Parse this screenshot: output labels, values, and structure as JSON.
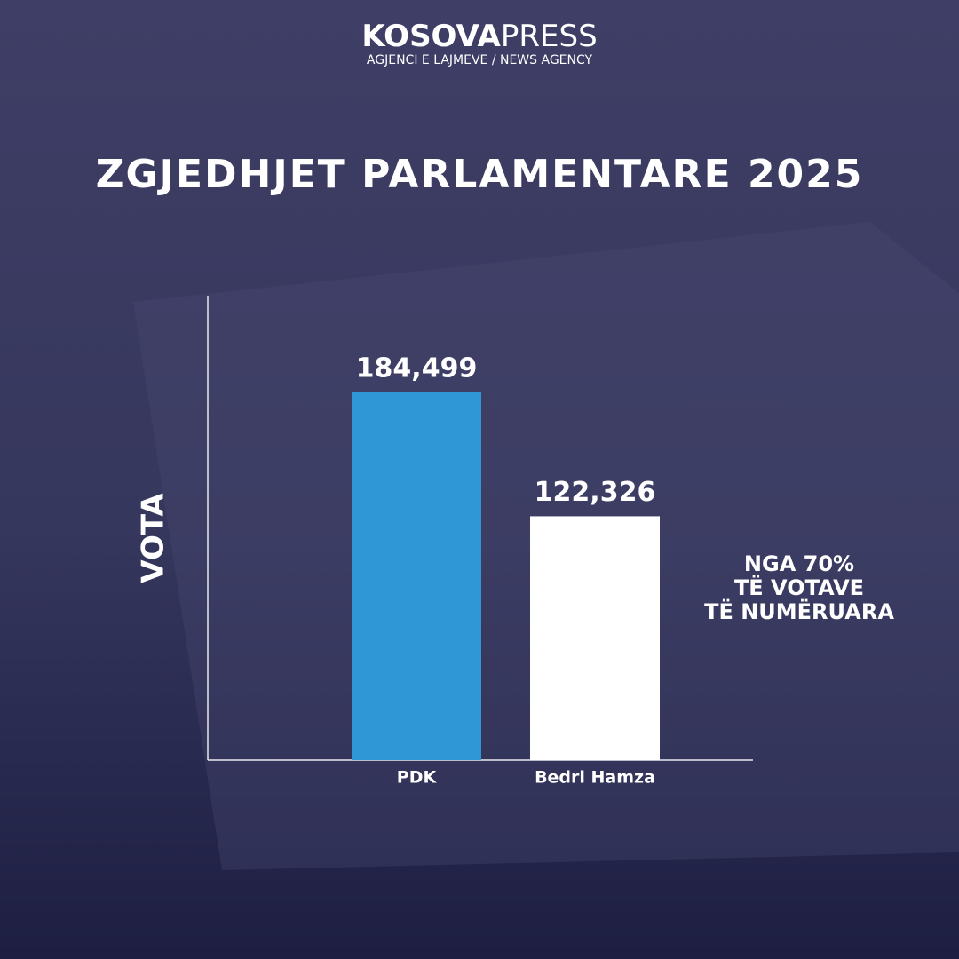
{
  "header": {
    "brand_bold": "KOSOVA",
    "brand_light": "PRESS",
    "tagline": "AGJENCI E LAJMEVE / NEWS AGENCY"
  },
  "chart_data": {
    "type": "bar",
    "title": "ZGJEDHJET PARLAMENTARE 2025",
    "y_label": "VOTA",
    "categories": [
      "PDK",
      "Bedri Hamza"
    ],
    "values": [
      184499,
      122326
    ],
    "value_labels": [
      "184,499",
      "122,326"
    ],
    "colors": [
      "#3097d6",
      "#ffffff"
    ],
    "ylim": [
      0,
      233000
    ],
    "annotation": [
      "NGA 70%",
      "TË VOTAVE",
      "TË NUMËRUARA"
    ]
  }
}
